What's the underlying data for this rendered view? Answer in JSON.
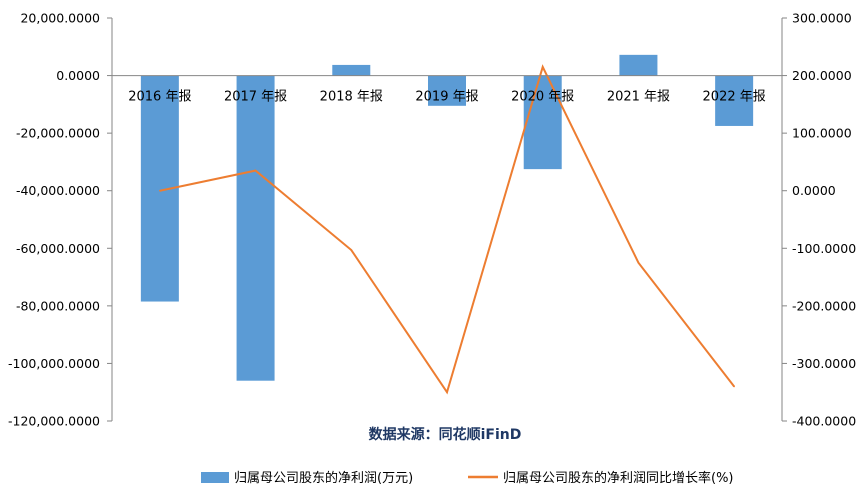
{
  "chart_data": {
    "type": "bar",
    "categories": [
      "2016 年报",
      "2017 年报",
      "2018 年报",
      "2019 年报",
      "2020 年报",
      "2021 年报",
      "2022 年报"
    ],
    "series": [
      {
        "name": "归属母公司股东的净利润(万元)",
        "type": "bar",
        "axis": "left",
        "color": "#5b9bd5",
        "values": [
          -78500,
          -106000,
          3700,
          -10500,
          -32500,
          7200,
          -17500
        ]
      },
      {
        "name": "归属母公司股东的净利润同比增长率(%)",
        "type": "line",
        "axis": "right",
        "color": "#ed7d31",
        "values": [
          0,
          35,
          -103,
          -350,
          215,
          -125,
          -340
        ]
      }
    ],
    "y_left": {
      "ylim": [
        -120000,
        20000
      ],
      "ticks": [
        20000,
        0,
        -20000,
        -40000,
        -60000,
        -80000,
        -100000,
        -120000
      ],
      "tick_labels": [
        "20,000.0000",
        "0.0000",
        "-20,000.0000",
        "-40,000.0000",
        "-60,000.0000",
        "-80,000.0000",
        "-100,000.0000",
        "-120,000.0000"
      ]
    },
    "y_right": {
      "ylim": [
        -400,
        300
      ],
      "ticks": [
        300,
        200,
        100,
        0,
        -100,
        -200,
        -300,
        -400
      ],
      "tick_labels": [
        "300.0000",
        "200.0000",
        "100.0000",
        "0.0000",
        "-100.0000",
        "-200.0000",
        "-300.0000",
        "-400.0000"
      ]
    },
    "source_note": "数据来源：同花顺iFinD",
    "legend_position": "bottom",
    "grid": false
  }
}
